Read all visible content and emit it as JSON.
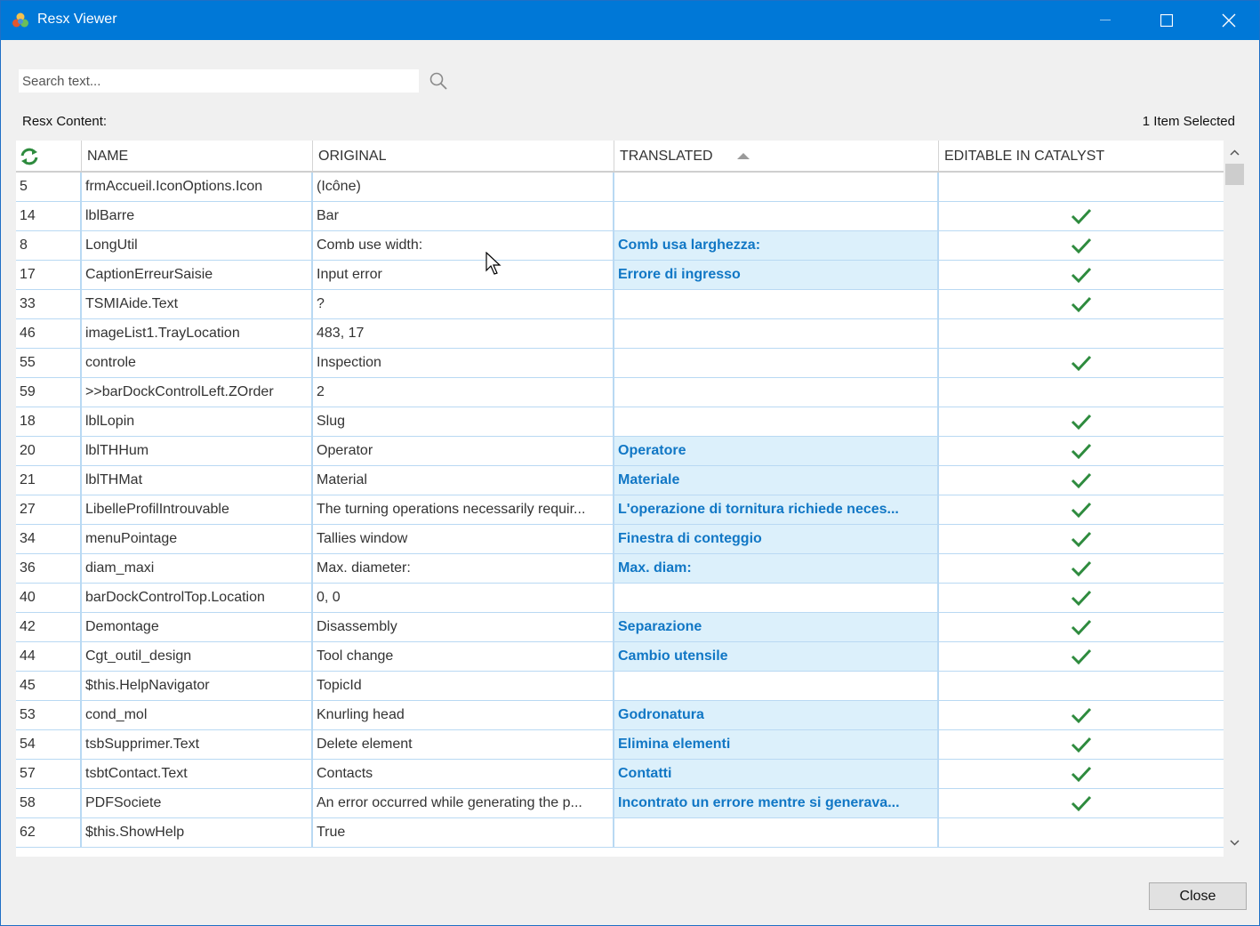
{
  "window": {
    "title": "Resx Viewer"
  },
  "search": {
    "placeholder": "Search text..."
  },
  "content_label": "Resx Content:",
  "selected_count": "1 Item Selected",
  "columns": {
    "name": "NAME",
    "original": "ORIGINAL",
    "translated": "TRANSLATED",
    "editable": "EDITABLE IN CATALYST"
  },
  "rows": [
    {
      "id": "5",
      "name": "frmAccueil.IconOptions.Icon",
      "original": "(Icône)",
      "translated": "",
      "editable": false
    },
    {
      "id": "14",
      "name": "lblBarre",
      "original": "Bar",
      "translated": "",
      "editable": true
    },
    {
      "id": "8",
      "name": "LongUtil",
      "original": "Comb use width:",
      "translated": "Comb usa larghezza:",
      "editable": true
    },
    {
      "id": "17",
      "name": "CaptionErreurSaisie",
      "original": "Input error",
      "translated": "Errore di ingresso",
      "editable": true
    },
    {
      "id": "33",
      "name": "TSMIAide.Text",
      "original": "?",
      "translated": "",
      "editable": true
    },
    {
      "id": "46",
      "name": "imageList1.TrayLocation",
      "original": "483, 17",
      "translated": "",
      "editable": false
    },
    {
      "id": "55",
      "name": "controle",
      "original": "Inspection",
      "translated": "",
      "editable": true
    },
    {
      "id": "59",
      "name": ">>barDockControlLeft.ZOrder",
      "original": "2",
      "translated": "",
      "editable": false
    },
    {
      "id": "18",
      "name": "lblLopin",
      "original": "Slug",
      "translated": "",
      "editable": true
    },
    {
      "id": "20",
      "name": "lblTHHum",
      "original": "Operator",
      "translated": "Operatore",
      "editable": true
    },
    {
      "id": "21",
      "name": "lblTHMat",
      "original": "Material",
      "translated": "Materiale",
      "editable": true
    },
    {
      "id": "27",
      "name": "LibelleProfilIntrouvable",
      "original": "The turning operations necessarily requir...",
      "translated": "L'operazione di tornitura richiede neces...",
      "editable": true
    },
    {
      "id": "34",
      "name": "menuPointage",
      "original": "Tallies window",
      "translated": "Finestra di conteggio",
      "editable": true
    },
    {
      "id": "36",
      "name": "diam_maxi",
      "original": "Max. diameter:",
      "translated": "Max. diam:",
      "editable": true
    },
    {
      "id": "40",
      "name": "barDockControlTop.Location",
      "original": "0, 0",
      "translated": "",
      "editable": true
    },
    {
      "id": "42",
      "name": "Demontage",
      "original": "Disassembly",
      "translated": "Separazione",
      "editable": true
    },
    {
      "id": "44",
      "name": "Cgt_outil_design",
      "original": "Tool change",
      "translated": "Cambio utensile",
      "editable": true
    },
    {
      "id": "45",
      "name": "$this.HelpNavigator",
      "original": "TopicId",
      "translated": "",
      "editable": false
    },
    {
      "id": "53",
      "name": "cond_mol",
      "original": "Knurling head",
      "translated": "Godronatura",
      "editable": true
    },
    {
      "id": "54",
      "name": "tsbSupprimer.Text",
      "original": "Delete element",
      "translated": "Elimina elementi",
      "editable": true
    },
    {
      "id": "57",
      "name": "tsbtContact.Text",
      "original": "Contacts",
      "translated": "Contatti",
      "editable": true
    },
    {
      "id": "58",
      "name": "PDFSociete",
      "original": "An error occurred while generating the p...",
      "translated": "Incontrato un errore mentre si generava...",
      "editable": true
    },
    {
      "id": "62",
      "name": "$this.ShowHelp",
      "original": "True",
      "translated": "",
      "editable": false
    }
  ],
  "footer": {
    "close_label": "Close"
  },
  "colors": {
    "titlebar": "#0078d7",
    "translated_text": "#1177c5",
    "translated_bg": "#dcf0fb",
    "check": "#2e8b3e",
    "row_border": "#b9d9f3"
  },
  "icons": {
    "app": "app-logo-icon",
    "search": "search-icon",
    "refresh": "refresh-icon",
    "check": "check-icon",
    "sort": "sort-ascending-icon"
  }
}
